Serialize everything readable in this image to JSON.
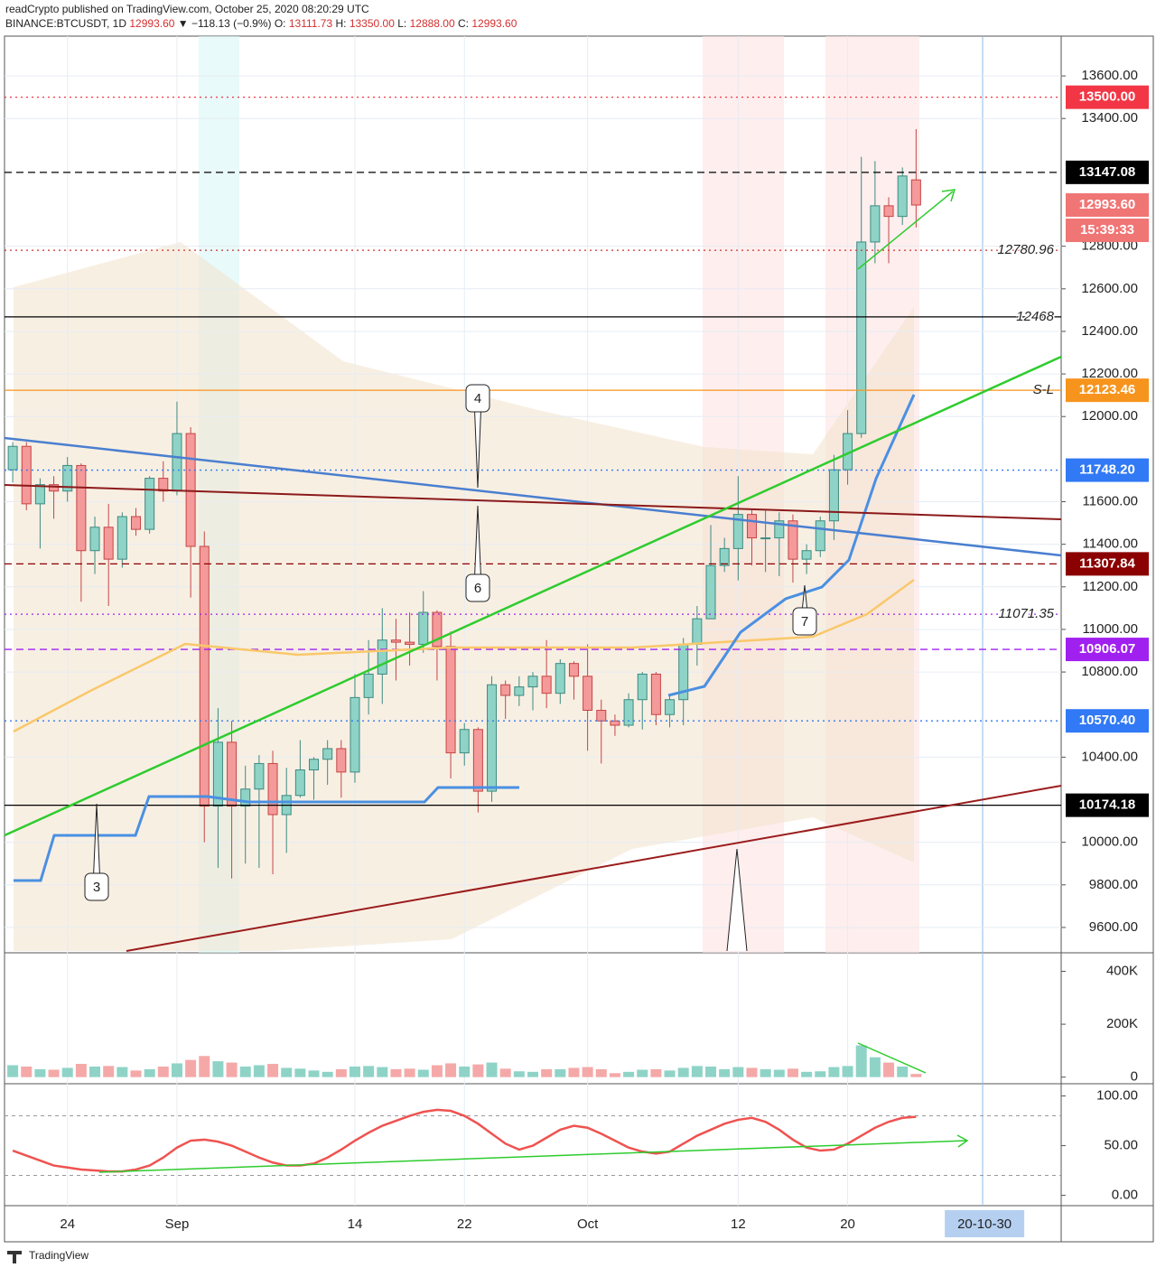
{
  "header": {
    "line1": "readCrypto published on TradingView.com, October 25, 2020 08:20:29 UTC",
    "symbol": "BINANCE:BTCUSDT, 1D",
    "last": "12993.60",
    "change": "▼ −118.13 (−0.9%)",
    "ohlc": [
      {
        "key": "O:",
        "value": "13111.73"
      },
      {
        "key": "H:",
        "value": "13350.00"
      },
      {
        "key": "L:",
        "value": "12888.00"
      },
      {
        "key": "C:",
        "value": "12993.60"
      }
    ]
  },
  "footer": {
    "brand": "TradingView"
  },
  "chart_data": [
    {
      "type": "candlestick",
      "up_color": "#8fd3c7",
      "down_color": "#f49a9a",
      "xlim": [
        -0.6,
        76.6
      ],
      "xticks": [
        {
          "value": 4,
          "label": "24"
        },
        {
          "value": 12,
          "label": "Sep"
        },
        {
          "value": 25,
          "label": "14"
        },
        {
          "value": 33,
          "label": "22"
        },
        {
          "value": 42,
          "label": "Oct"
        },
        {
          "value": 53,
          "label": "12"
        },
        {
          "value": 61,
          "label": "20"
        }
      ],
      "x_cursor": {
        "value": 71,
        "label": "20-10-30"
      },
      "ylim": [
        9481,
        13787
      ],
      "yticks": [
        {
          "value": 9600,
          "label": "9600.00"
        },
        {
          "value": 9800,
          "label": "9800.00"
        },
        {
          "value": 10000,
          "label": "10000.00"
        },
        {
          "value": 10400,
          "label": "10400.00"
        },
        {
          "value": 10800,
          "label": "10800.00"
        },
        {
          "value": 11000,
          "label": "11000.00"
        },
        {
          "value": 11200,
          "label": "11200.00"
        },
        {
          "value": 11400,
          "label": "11400.00"
        },
        {
          "value": 11600,
          "label": "11600.00"
        },
        {
          "value": 12000,
          "label": "12000.00"
        },
        {
          "value": 12200,
          "label": "12200.00"
        },
        {
          "value": 12400,
          "label": "12400.00"
        },
        {
          "value": 12600,
          "label": "12600.00"
        },
        {
          "value": 12800,
          "label": "12800.00"
        },
        {
          "value": 13400,
          "label": "13400.00"
        },
        {
          "value": 13600,
          "label": "13600.00"
        }
      ],
      "grid": true,
      "candles": {
        "open": [
          11750,
          11860,
          11590,
          11680,
          11650,
          11770,
          11370,
          11480,
          11330,
          11530,
          11470,
          11710,
          11650,
          11920,
          11390,
          10170,
          10470,
          10170,
          10250,
          10370,
          10130,
          10220,
          10340,
          10390,
          10440,
          10330,
          10680,
          10790,
          10950,
          10940,
          10930,
          11080,
          10920,
          10420,
          10530,
          10240,
          10740,
          10690,
          10730,
          10780,
          10700,
          10840,
          10780,
          10620,
          10570,
          10550,
          10670,
          10790,
          10600,
          10670,
          10930,
          11050,
          11300,
          11380,
          11540,
          11430,
          11430,
          11510,
          11330,
          11370,
          11510,
          11750,
          11920,
          12820,
          12990,
          12940,
          13111.73
        ],
        "high": [
          11880,
          11880,
          11710,
          11720,
          11810,
          11780,
          11530,
          11590,
          11550,
          11570,
          11720,
          11790,
          12070,
          11950,
          11460,
          10630,
          10570,
          10360,
          10410,
          10430,
          10350,
          10480,
          10400,
          10480,
          10480,
          10790,
          10950,
          11100,
          11050,
          11080,
          11180,
          11090,
          10990,
          10560,
          10540,
          10780,
          10760,
          10780,
          10800,
          10950,
          10860,
          10850,
          10930,
          10670,
          10600,
          10700,
          10800,
          10800,
          10690,
          10960,
          11110,
          11490,
          11430,
          11720,
          11560,
          11560,
          11550,
          11540,
          11400,
          11530,
          11820,
          12030,
          13220,
          13200,
          13030,
          13170,
          13350
        ],
        "low": [
          11690,
          11560,
          11380,
          11520,
          11600,
          11130,
          11260,
          11110,
          11290,
          11440,
          11450,
          11600,
          11630,
          11150,
          10000,
          9880,
          9830,
          9900,
          9880,
          9850,
          9950,
          10210,
          10200,
          10270,
          10210,
          10280,
          10600,
          10650,
          10760,
          10830,
          10890,
          10760,
          10300,
          10360,
          10140,
          10190,
          10580,
          10640,
          10620,
          10630,
          10650,
          10670,
          10430,
          10370,
          10500,
          10540,
          10530,
          10550,
          10540,
          10550,
          10830,
          11050,
          11270,
          11230,
          11300,
          11270,
          11250,
          11220,
          11260,
          11340,
          11420,
          11680,
          11900,
          12720,
          12720,
          12900,
          12888
        ],
        "close": [
          11860,
          11590,
          11680,
          11650,
          11770,
          11370,
          11480,
          11330,
          11530,
          11470,
          11710,
          11650,
          11920,
          11390,
          10170,
          10470,
          10170,
          10250,
          10370,
          10130,
          10220,
          10340,
          10390,
          10440,
          10330,
          10680,
          10790,
          10950,
          10940,
          10930,
          11080,
          10920,
          10420,
          10530,
          10240,
          10740,
          10690,
          10730,
          10780,
          10700,
          10840,
          10780,
          10620,
          10570,
          10550,
          10670,
          10790,
          10600,
          10670,
          10930,
          11050,
          11300,
          11380,
          11540,
          11430,
          11430,
          11510,
          11330,
          11370,
          11510,
          11750,
          11920,
          12820,
          12990,
          12940,
          13130,
          12993.6
        ]
      },
      "levels": [
        {
          "value": 13500,
          "label": "13500.00",
          "color": "#f23645",
          "dash": "dotted",
          "style": "box"
        },
        {
          "value": 13147.08,
          "label": "13147.08",
          "color": "#000000",
          "dash": "dashed",
          "style": "box"
        },
        {
          "value": 12993.6,
          "label": "12993.60",
          "color": "#f07575",
          "dash": "none",
          "style": "box",
          "countdown": "15:39:33"
        },
        {
          "value": 12780.96,
          "label": "12780.96",
          "color": "#d32f2f",
          "dash": "dotted",
          "style": "text"
        },
        {
          "value": 12468,
          "label": "12468",
          "color": "#000000",
          "dash": "solid",
          "style": "text"
        },
        {
          "value": 12123.46,
          "label": "12123.46",
          "color": "#f7941d",
          "dash": "solid",
          "style": "box",
          "note": "S-L"
        },
        {
          "value": 11748.2,
          "label": "11748.20",
          "color": "#3179f5",
          "dash": "dotted",
          "style": "box"
        },
        {
          "value": 11307.84,
          "label": "11307.84",
          "color": "#8b0000",
          "dash": "dashed",
          "style": "box"
        },
        {
          "value": 11071.35,
          "label": "11071.35",
          "color": "#a020f0",
          "dash": "dotted",
          "style": "text"
        },
        {
          "value": 10906.07,
          "label": "10906.07",
          "color": "#a020f0",
          "dash": "dashed",
          "style": "box"
        },
        {
          "value": 10570.4,
          "label": "10570.40",
          "color": "#3179f5",
          "dash": "dotted",
          "style": "box"
        },
        {
          "value": 10174.18,
          "label": "10174.18",
          "color": "#000000",
          "dash": "solid",
          "style": "box"
        }
      ],
      "annotations": [
        {
          "text": "3"
        },
        {
          "text": "4"
        },
        {
          "text": "6"
        },
        {
          "text": "7"
        }
      ]
    },
    {
      "type": "bar",
      "up_color": "#8fd3c7",
      "down_color": "#f4a9a8",
      "ylim": [
        -25000,
        470000
      ],
      "yticks": [
        {
          "value": 400000,
          "label": "400K"
        },
        {
          "value": 200000,
          "label": "200K"
        },
        0
      ],
      "values": [
        45000,
        40000,
        30000,
        28000,
        35000,
        50000,
        40000,
        42000,
        38000,
        25000,
        30000,
        40000,
        52000,
        65000,
        80000,
        60000,
        55000,
        40000,
        45000,
        50000,
        35000,
        32000,
        25000,
        20000,
        30000,
        40000,
        42000,
        38000,
        30000,
        32000,
        28000,
        45000,
        52000,
        40000,
        48000,
        55000,
        32000,
        22000,
        20000,
        30000,
        30000,
        35000,
        38000,
        30000,
        15000,
        20000,
        28000,
        30000,
        25000,
        35000,
        42000,
        40000,
        30000,
        38000,
        35000,
        30000,
        28000,
        32000,
        20000,
        22000,
        38000,
        42000,
        120000,
        75000,
        55000,
        40000,
        12000
      ]
    },
    {
      "type": "line",
      "color": "#ef5350",
      "ylim": [
        -10.4,
        112.3
      ],
      "yticks": [
        {
          "value": 100,
          "label": "100.00"
        },
        {
          "value": 50,
          "label": "50.00"
        },
        {
          "value": 0,
          "label": "0.00"
        }
      ],
      "levels": [
        20,
        80
      ],
      "values": [
        45,
        40,
        35,
        30,
        28,
        26,
        25,
        24,
        24,
        26,
        30,
        38,
        48,
        55,
        56,
        54,
        50,
        44,
        38,
        33,
        30,
        30,
        32,
        38,
        46,
        55,
        63,
        70,
        75,
        80,
        84,
        86,
        85,
        80,
        72,
        62,
        52,
        46,
        50,
        58,
        66,
        70,
        68,
        62,
        55,
        48,
        44,
        42,
        44,
        52,
        60,
        66,
        72,
        76,
        78,
        74,
        66,
        56,
        48,
        45,
        46,
        52,
        60,
        68,
        74,
        78,
        79
      ]
    }
  ]
}
